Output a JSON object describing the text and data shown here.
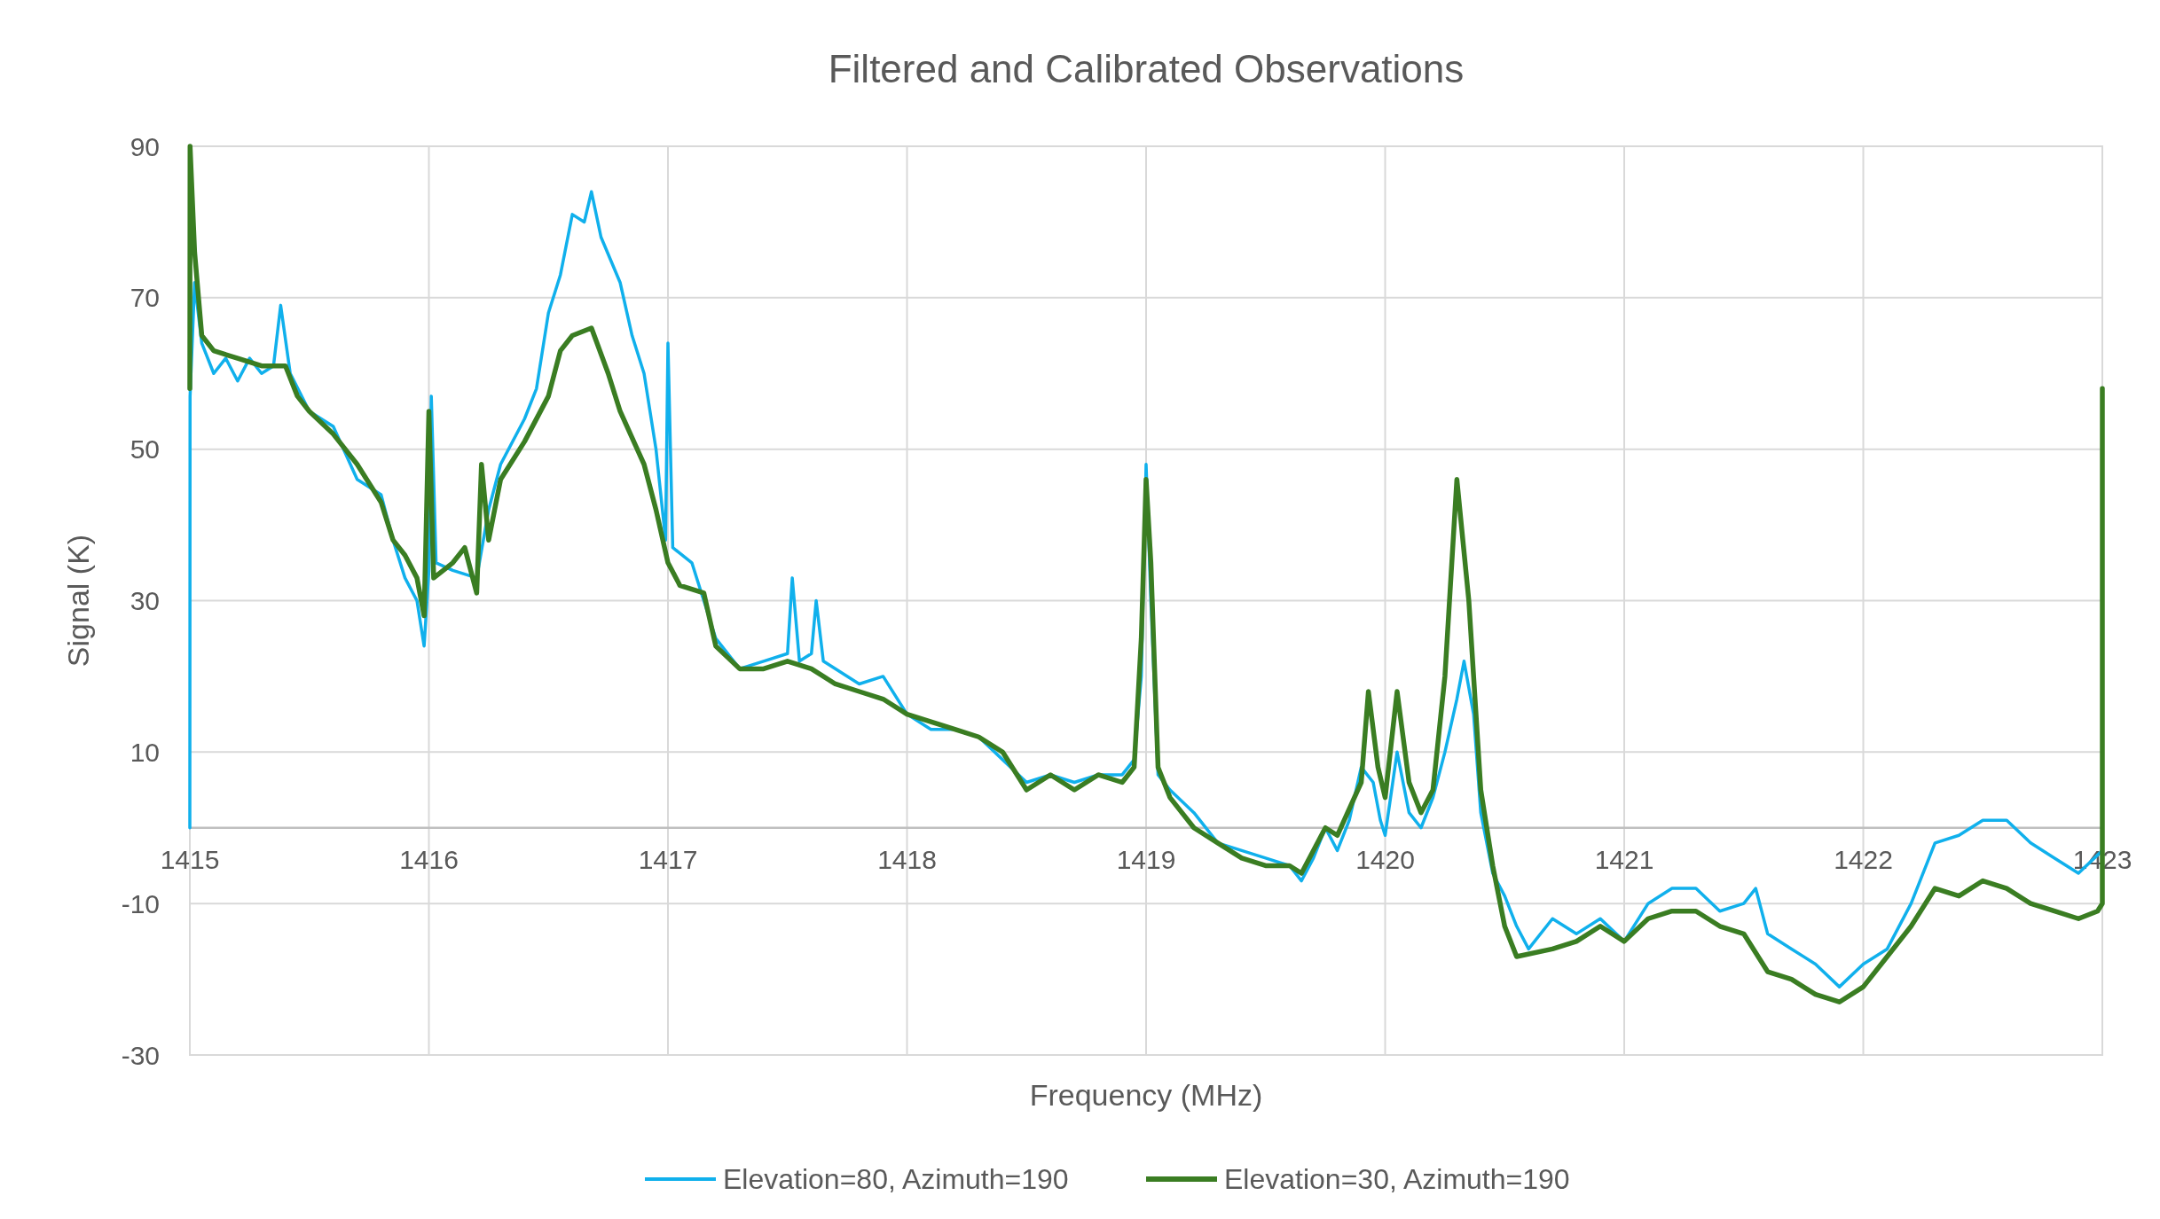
{
  "chart_data": {
    "type": "line",
    "title": "Filtered and Calibrated Observations",
    "xlabel": "Frequency (MHz)",
    "ylabel": "Signal (K)",
    "xlim": [
      1415,
      1423
    ],
    "xticks": [
      1415,
      1416,
      1417,
      1418,
      1419,
      1420,
      1421,
      1422,
      1423
    ],
    "ylim": [
      -30,
      90
    ],
    "yticks": [
      -30,
      -10,
      10,
      30,
      50,
      70,
      90
    ],
    "grid": true,
    "legend": "bottom",
    "marker": "none",
    "line_style": "solid",
    "series": [
      {
        "name": "Elevation=80, Azimuth=190",
        "color": "#10b0ec",
        "x": [
          1415,
          1415.001,
          1415.02,
          1415.05,
          1415.1,
          1415.15,
          1415.2,
          1415.25,
          1415.3,
          1415.35,
          1415.38,
          1415.42,
          1415.5,
          1415.6,
          1415.7,
          1415.8,
          1415.85,
          1415.9,
          1415.95,
          1415.98,
          1416,
          1416.01,
          1416.03,
          1416.1,
          1416.2,
          1416.25,
          1416.3,
          1416.4,
          1416.45,
          1416.5,
          1416.55,
          1416.6,
          1416.65,
          1416.68,
          1416.72,
          1416.8,
          1416.85,
          1416.9,
          1416.95,
          1416.99,
          1417,
          1417.02,
          1417.1,
          1417.15,
          1417.2,
          1417.3,
          1417.4,
          1417.5,
          1417.52,
          1417.55,
          1417.6,
          1417.62,
          1417.65,
          1417.8,
          1417.9,
          1418,
          1418.1,
          1418.2,
          1418.3,
          1418.4,
          1418.5,
          1418.6,
          1418.7,
          1418.8,
          1418.9,
          1418.95,
          1418.98,
          1419,
          1419.02,
          1419.05,
          1419.1,
          1419.2,
          1419.3,
          1419.4,
          1419.5,
          1419.6,
          1419.65,
          1419.7,
          1419.75,
          1419.8,
          1419.85,
          1419.9,
          1419.95,
          1419.98,
          1420,
          1420.05,
          1420.1,
          1420.15,
          1420.2,
          1420.25,
          1420.3,
          1420.33,
          1420.37,
          1420.4,
          1420.45,
          1420.5,
          1420.55,
          1420.6,
          1420.7,
          1420.8,
          1420.9,
          1421,
          1421.1,
          1421.2,
          1421.3,
          1421.4,
          1421.5,
          1421.55,
          1421.6,
          1421.7,
          1421.8,
          1421.9,
          1422,
          1422.1,
          1422.2,
          1422.3,
          1422.4,
          1422.5,
          1422.6,
          1422.7,
          1422.8,
          1422.9,
          1423
        ],
        "values": [
          0,
          57,
          72,
          64,
          60,
          62,
          59,
          62,
          60,
          61,
          69,
          60,
          55,
          53,
          46,
          44,
          38,
          33,
          30,
          24,
          34,
          57,
          35,
          34,
          33,
          42,
          48,
          54,
          58,
          68,
          73,
          81,
          80,
          84,
          78,
          72,
          65,
          60,
          50,
          38,
          64,
          37,
          35,
          30,
          25,
          21,
          22,
          23,
          33,
          22,
          23,
          30,
          22,
          19,
          20,
          15,
          13,
          13,
          12,
          9,
          6,
          7,
          6,
          7,
          7,
          9,
          20,
          48,
          30,
          7,
          5,
          2,
          -2,
          -3,
          -4,
          -5,
          -7,
          -4,
          0,
          -3,
          1,
          8,
          6,
          1,
          -1,
          10,
          2,
          0,
          4,
          10,
          17,
          22,
          15,
          2,
          -6,
          -9,
          -13,
          -16,
          -12,
          -14,
          -12,
          -15,
          -10,
          -8,
          -8,
          -11,
          -10,
          -8,
          -14,
          -16,
          -18,
          -21,
          -18,
          -16,
          -10,
          -2,
          -1,
          1,
          1,
          -2,
          -4,
          -6,
          -3
        ]
      },
      {
        "name": "Elevation=30, Azimuth=190",
        "color": "#3a7d22",
        "x": [
          1415,
          1415.001,
          1415.02,
          1415.05,
          1415.1,
          1415.2,
          1415.3,
          1415.4,
          1415.45,
          1415.5,
          1415.6,
          1415.7,
          1415.8,
          1415.85,
          1415.9,
          1415.95,
          1415.98,
          1416,
          1416.02,
          1416.1,
          1416.15,
          1416.2,
          1416.22,
          1416.25,
          1416.3,
          1416.4,
          1416.5,
          1416.55,
          1416.6,
          1416.68,
          1416.75,
          1416.8,
          1416.9,
          1416.95,
          1417,
          1417.05,
          1417.15,
          1417.2,
          1417.3,
          1417.4,
          1417.5,
          1417.6,
          1417.7,
          1417.8,
          1417.9,
          1418,
          1418.2,
          1418.3,
          1418.4,
          1418.5,
          1418.6,
          1418.7,
          1418.8,
          1418.9,
          1418.95,
          1418.98,
          1419,
          1419.02,
          1419.05,
          1419.1,
          1419.2,
          1419.3,
          1419.4,
          1419.5,
          1419.6,
          1419.65,
          1419.75,
          1419.8,
          1419.9,
          1419.93,
          1419.97,
          1420,
          1420.05,
          1420.1,
          1420.15,
          1420.2,
          1420.25,
          1420.3,
          1420.35,
          1420.4,
          1420.45,
          1420.5,
          1420.55,
          1420.7,
          1420.8,
          1420.9,
          1421,
          1421.1,
          1421.2,
          1421.3,
          1421.4,
          1421.5,
          1421.6,
          1421.7,
          1421.8,
          1421.9,
          1422,
          1422.1,
          1422.2,
          1422.3,
          1422.4,
          1422.5,
          1422.6,
          1422.7,
          1422.8,
          1422.9,
          1422.98,
          1423,
          1423
        ],
        "values": [
          58,
          90,
          76,
          65,
          63,
          62,
          61,
          61,
          57,
          55,
          52,
          48,
          43,
          38,
          36,
          33,
          28,
          55,
          33,
          35,
          37,
          31,
          48,
          38,
          46,
          51,
          57,
          63,
          65,
          66,
          60,
          55,
          48,
          42,
          35,
          32,
          31,
          24,
          21,
          21,
          22,
          21,
          19,
          18,
          17,
          15,
          13,
          12,
          10,
          5,
          7,
          5,
          7,
          6,
          8,
          25,
          46,
          35,
          8,
          4,
          0,
          -2,
          -4,
          -5,
          -5,
          -6,
          0,
          -1,
          6,
          18,
          8,
          4,
          18,
          6,
          2,
          5,
          20,
          46,
          30,
          5,
          -5,
          -13,
          -17,
          -16,
          -15,
          -13,
          -15,
          -12,
          -11,
          -11,
          -13,
          -14,
          -19,
          -20,
          -22,
          -23,
          -21,
          -17,
          -13,
          -8,
          -9,
          -7,
          -8,
          -10,
          -11,
          -12,
          -11,
          -10,
          58
        ]
      }
    ]
  }
}
